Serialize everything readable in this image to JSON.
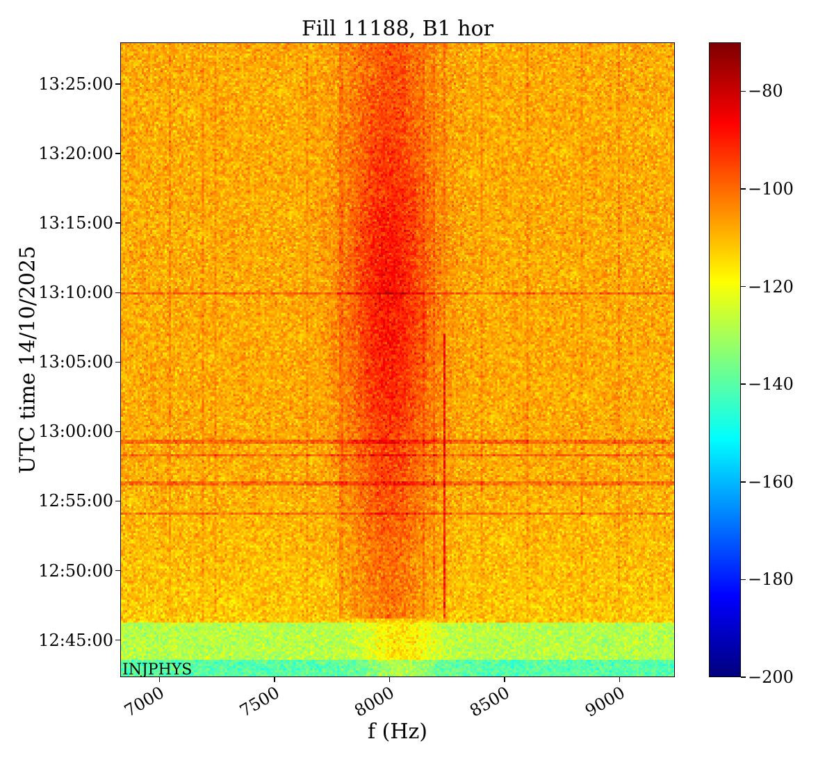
{
  "chart_data": {
    "type": "heatmap",
    "title": "Fill 11188, B1 hor",
    "xlabel": "f (Hz)",
    "ylabel": "UTC time 14/10/2025",
    "annotation": "INJPHYS",
    "xlim": [
      6830,
      9240
    ],
    "ylim": [
      "12:42:20",
      "13:28:00"
    ],
    "xticks": [
      "7000",
      "7500",
      "8000",
      "8500",
      "9000"
    ],
    "xtick_values": [
      7000,
      7500,
      8000,
      8500,
      9000
    ],
    "yticks": [
      "12:45:00",
      "12:50:00",
      "12:55:00",
      "13:00:00",
      "13:05:00",
      "13:10:00",
      "13:15:00",
      "13:20:00",
      "13:25:00"
    ],
    "colorbar": {
      "colormap": "jet",
      "range": [
        -200,
        -70
      ],
      "ticks": [
        "−80",
        "−100",
        "−120",
        "−140",
        "−160",
        "−180",
        "−200"
      ],
      "tick_values": [
        -80,
        -100,
        -120,
        -140,
        -160,
        -180,
        -200
      ]
    },
    "features": {
      "background_level_db": -108,
      "central_peak": {
        "center_hz": 8000,
        "width_hz": 180,
        "peak_level_db": -88,
        "time_range": [
          "12:46:30",
          "13:28:00"
        ]
      },
      "horizontal_lines": [
        "12:54:05",
        "12:56:15",
        "12:58:15",
        "12:59:15",
        "13:09:55"
      ],
      "vertical_lines_hz": [
        7040,
        7190,
        7240,
        7640,
        7790,
        8150,
        8195,
        8240,
        8400,
        8600,
        8840,
        9000
      ],
      "low_band": {
        "from": "12:43:30",
        "to": "12:46:10",
        "level_db": -128
      },
      "lowest_band": {
        "from": "12:42:20",
        "to": "12:43:30",
        "level_db": -140
      }
    }
  }
}
